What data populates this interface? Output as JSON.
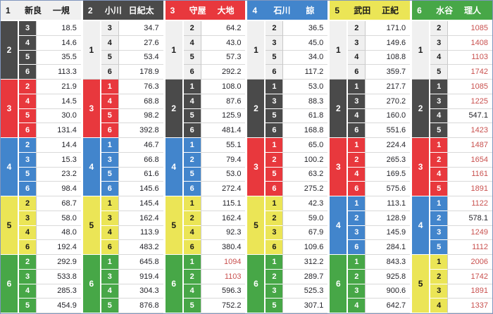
{
  "colors": {
    "white": {
      "bg": "#f0f0f0",
      "fg": "#1a1a1a"
    },
    "black": {
      "bg": "#4a4a4a",
      "fg": "#ffffff"
    },
    "red": {
      "bg": "#e8383d",
      "fg": "#ffffff"
    },
    "blue": {
      "bg": "#4285cc",
      "fg": "#ffffff"
    },
    "yellow": {
      "bg": "#ebe556",
      "fg": "#1a1a1a"
    },
    "green": {
      "bg": "#47a747",
      "fg": "#ffffff"
    },
    "hot_odds_text": "#c9514f",
    "normal_odds_text": "#24242a",
    "frame_border": "#8096be"
  },
  "color_by_number": {
    "1": "white",
    "2": "black",
    "3": "red",
    "4": "blue",
    "5": "yellow",
    "6": "green"
  },
  "table": {
    "columns": [
      {
        "racer": {
          "number": "1",
          "family": "新良",
          "given": "一規",
          "color": "white"
        },
        "groups": [
          {
            "second": "2",
            "thirds": [
              "3",
              "4",
              "5",
              "6"
            ],
            "odds": [
              "18.5",
              "14.6",
              "35.5",
              "113.3"
            ]
          },
          {
            "second": "3",
            "thirds": [
              "2",
              "4",
              "5",
              "6"
            ],
            "odds": [
              "21.9",
              "14.5",
              "30.0",
              "131.4"
            ]
          },
          {
            "second": "4",
            "thirds": [
              "2",
              "3",
              "5",
              "6"
            ],
            "odds": [
              "14.4",
              "15.3",
              "23.2",
              "98.4"
            ]
          },
          {
            "second": "5",
            "thirds": [
              "2",
              "3",
              "4",
              "6"
            ],
            "odds": [
              "68.7",
              "58.0",
              "48.0",
              "192.4"
            ]
          },
          {
            "second": "6",
            "thirds": [
              "2",
              "3",
              "4",
              "5"
            ],
            "odds": [
              "292.9",
              "533.8",
              "285.3",
              "454.9"
            ]
          }
        ]
      },
      {
        "racer": {
          "number": "2",
          "family": "小川",
          "given": "日紀太",
          "color": "black"
        },
        "groups": [
          {
            "second": "1",
            "thirds": [
              "3",
              "4",
              "5",
              "6"
            ],
            "odds": [
              "34.7",
              "27.6",
              "53.4",
              "178.9"
            ]
          },
          {
            "second": "3",
            "thirds": [
              "1",
              "4",
              "5",
              "6"
            ],
            "odds": [
              "76.3",
              "68.8",
              "98.2",
              "392.8"
            ]
          },
          {
            "second": "4",
            "thirds": [
              "1",
              "3",
              "5",
              "6"
            ],
            "odds": [
              "46.7",
              "66.8",
              "61.6",
              "145.6"
            ]
          },
          {
            "second": "5",
            "thirds": [
              "1",
              "3",
              "4",
              "6"
            ],
            "odds": [
              "145.4",
              "162.4",
              "113.9",
              "483.2"
            ]
          },
          {
            "second": "6",
            "thirds": [
              "1",
              "3",
              "4",
              "5"
            ],
            "odds": [
              "645.8",
              "919.4",
              "304.3",
              "876.8"
            ]
          }
        ]
      },
      {
        "racer": {
          "number": "3",
          "family": "守屋",
          "given": "大地",
          "color": "red"
        },
        "groups": [
          {
            "second": "1",
            "thirds": [
              "2",
              "4",
              "5",
              "6"
            ],
            "odds": [
              "64.2",
              "43.0",
              "57.3",
              "292.2"
            ]
          },
          {
            "second": "2",
            "thirds": [
              "1",
              "4",
              "5",
              "6"
            ],
            "odds": [
              "108.0",
              "87.6",
              "125.9",
              "481.4"
            ]
          },
          {
            "second": "4",
            "thirds": [
              "1",
              "2",
              "5",
              "6"
            ],
            "odds": [
              "55.1",
              "79.4",
              "53.0",
              "272.4"
            ]
          },
          {
            "second": "5",
            "thirds": [
              "1",
              "2",
              "4",
              "6"
            ],
            "odds": [
              "115.1",
              "162.4",
              "92.3",
              "380.4"
            ]
          },
          {
            "second": "6",
            "thirds": [
              "1",
              "2",
              "4",
              "5"
            ],
            "odds": [
              "1094",
              "1103",
              "596.3",
              "752.2"
            ]
          }
        ]
      },
      {
        "racer": {
          "number": "4",
          "family": "石川",
          "given": "諒",
          "color": "blue"
        },
        "groups": [
          {
            "second": "1",
            "thirds": [
              "2",
              "3",
              "5",
              "6"
            ],
            "odds": [
              "36.5",
              "45.0",
              "34.0",
              "117.2"
            ]
          },
          {
            "second": "2",
            "thirds": [
              "1",
              "3",
              "5",
              "6"
            ],
            "odds": [
              "53.0",
              "88.3",
              "61.8",
              "168.8"
            ]
          },
          {
            "second": "3",
            "thirds": [
              "1",
              "2",
              "5",
              "6"
            ],
            "odds": [
              "65.0",
              "100.2",
              "63.2",
              "275.2"
            ]
          },
          {
            "second": "5",
            "thirds": [
              "1",
              "2",
              "3",
              "6"
            ],
            "odds": [
              "42.3",
              "59.0",
              "67.9",
              "109.6"
            ]
          },
          {
            "second": "6",
            "thirds": [
              "1",
              "2",
              "3",
              "5"
            ],
            "odds": [
              "312.2",
              "289.7",
              "525.3",
              "307.1"
            ]
          }
        ]
      },
      {
        "racer": {
          "number": "5",
          "family": "武田",
          "given": "正紀",
          "color": "yellow"
        },
        "groups": [
          {
            "second": "1",
            "thirds": [
              "2",
              "3",
              "4",
              "6"
            ],
            "odds": [
              "171.0",
              "149.6",
              "108.8",
              "359.7"
            ]
          },
          {
            "second": "2",
            "thirds": [
              "1",
              "3",
              "4",
              "6"
            ],
            "odds": [
              "217.7",
              "270.2",
              "160.0",
              "551.6"
            ]
          },
          {
            "second": "3",
            "thirds": [
              "1",
              "2",
              "4",
              "6"
            ],
            "odds": [
              "224.4",
              "265.3",
              "169.5",
              "575.6"
            ]
          },
          {
            "second": "4",
            "thirds": [
              "1",
              "2",
              "3",
              "6"
            ],
            "odds": [
              "113.1",
              "128.9",
              "145.9",
              "284.1"
            ]
          },
          {
            "second": "6",
            "thirds": [
              "1",
              "2",
              "3",
              "4"
            ],
            "odds": [
              "843.3",
              "925.8",
              "900.6",
              "642.7"
            ]
          }
        ]
      },
      {
        "racer": {
          "number": "6",
          "family": "水谷",
          "given": "理人",
          "color": "green"
        },
        "groups": [
          {
            "second": "1",
            "thirds": [
              "2",
              "3",
              "4",
              "5"
            ],
            "odds": [
              "1085",
              "1408",
              "1103",
              "1742"
            ]
          },
          {
            "second": "2",
            "thirds": [
              "1",
              "3",
              "4",
              "5"
            ],
            "odds": [
              "1085",
              "1225",
              "547.1",
              "1423"
            ]
          },
          {
            "second": "3",
            "thirds": [
              "1",
              "2",
              "4",
              "5"
            ],
            "odds": [
              "1487",
              "1654",
              "1161",
              "1891"
            ]
          },
          {
            "second": "4",
            "thirds": [
              "1",
              "2",
              "3",
              "5"
            ],
            "odds": [
              "1122",
              "578.1",
              "1249",
              "1112"
            ]
          },
          {
            "second": "5",
            "thirds": [
              "1",
              "2",
              "3",
              "4"
            ],
            "odds": [
              "2006",
              "1742",
              "1891",
              "1337"
            ]
          }
        ]
      }
    ]
  }
}
